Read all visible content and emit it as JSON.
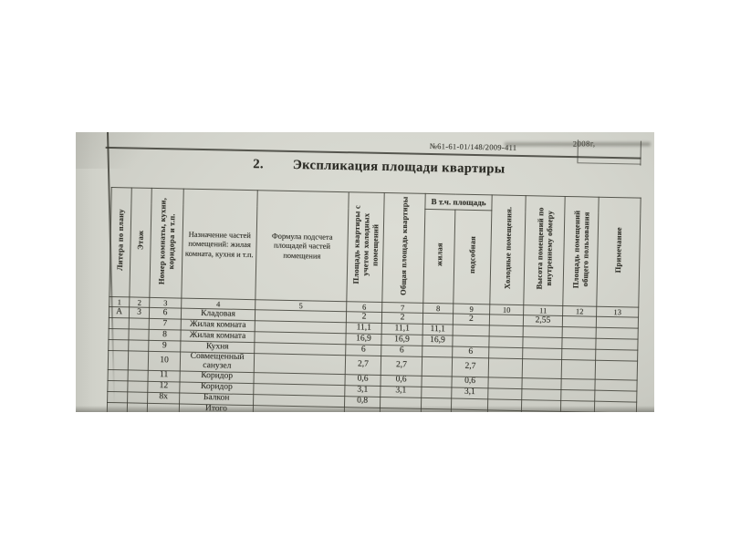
{
  "document": {
    "registry_number": "№61-61-01/148/2009-411",
    "top_fragment": "2008г,",
    "section_number": "2.",
    "title": "Экспликация площади квартиры"
  },
  "table": {
    "group_header": "В т.ч. площадь",
    "columns": [
      {
        "n": "1",
        "label": "Литера по плану"
      },
      {
        "n": "2",
        "label": "Этаж"
      },
      {
        "n": "3",
        "label": "Номер комнаты, кухни, коридора и т.п."
      },
      {
        "n": "4",
        "label": "Назначение частей помещений: жилая комната, кухня и т.п."
      },
      {
        "n": "5",
        "label": "Формула подсчета площадей частей помещения"
      },
      {
        "n": "6",
        "label": "Площадь квартиры с учетом холодных помещений"
      },
      {
        "n": "7",
        "label": "Общая площадь квартиры"
      },
      {
        "n": "8",
        "label": "жилая"
      },
      {
        "n": "9",
        "label": "подсобная"
      },
      {
        "n": "10",
        "label": "Холодные помещения."
      },
      {
        "n": "11",
        "label": "Высота помещений по внутреннему обмеру"
      },
      {
        "n": "12",
        "label": "Площадь помещений общего пользования"
      },
      {
        "n": "13",
        "label": "Примечание"
      }
    ],
    "rows": [
      [
        "А",
        "3",
        "6",
        "Кладовая",
        "",
        "2",
        "2",
        "",
        "2",
        "",
        "2,55",
        "",
        ""
      ],
      [
        "",
        "",
        "7",
        "Жилая комната",
        "",
        "11,1",
        "11,1",
        "11,1",
        "",
        "",
        "",
        "",
        ""
      ],
      [
        "",
        "",
        "8",
        "Жилая комната",
        "",
        "16,9",
        "16,9",
        "16,9",
        "",
        "",
        "",
        "",
        ""
      ],
      [
        "",
        "",
        "9",
        "Кухня",
        "",
        "6",
        "6",
        "",
        "6",
        "",
        "",
        "",
        ""
      ],
      [
        "",
        "",
        "10",
        "Совмещенный санузел",
        "",
        "2,7",
        "2,7",
        "",
        "2,7",
        "",
        "",
        "",
        ""
      ],
      [
        "",
        "",
        "11",
        "Коридор",
        "",
        "0,6",
        "0,6",
        "",
        "0,6",
        "",
        "",
        "",
        ""
      ],
      [
        "",
        "",
        "12",
        "Коридор",
        "",
        "3,1",
        "3,1",
        "",
        "3,1",
        "",
        "",
        "",
        ""
      ],
      [
        "",
        "",
        "8х",
        "Балкон",
        "",
        "0,8",
        "",
        "",
        "",
        "",
        "",
        "",
        ""
      ],
      [
        "",
        "",
        "",
        "Итого",
        "",
        "",
        "",
        "",
        "",
        "",
        "",
        "",
        ""
      ]
    ]
  }
}
